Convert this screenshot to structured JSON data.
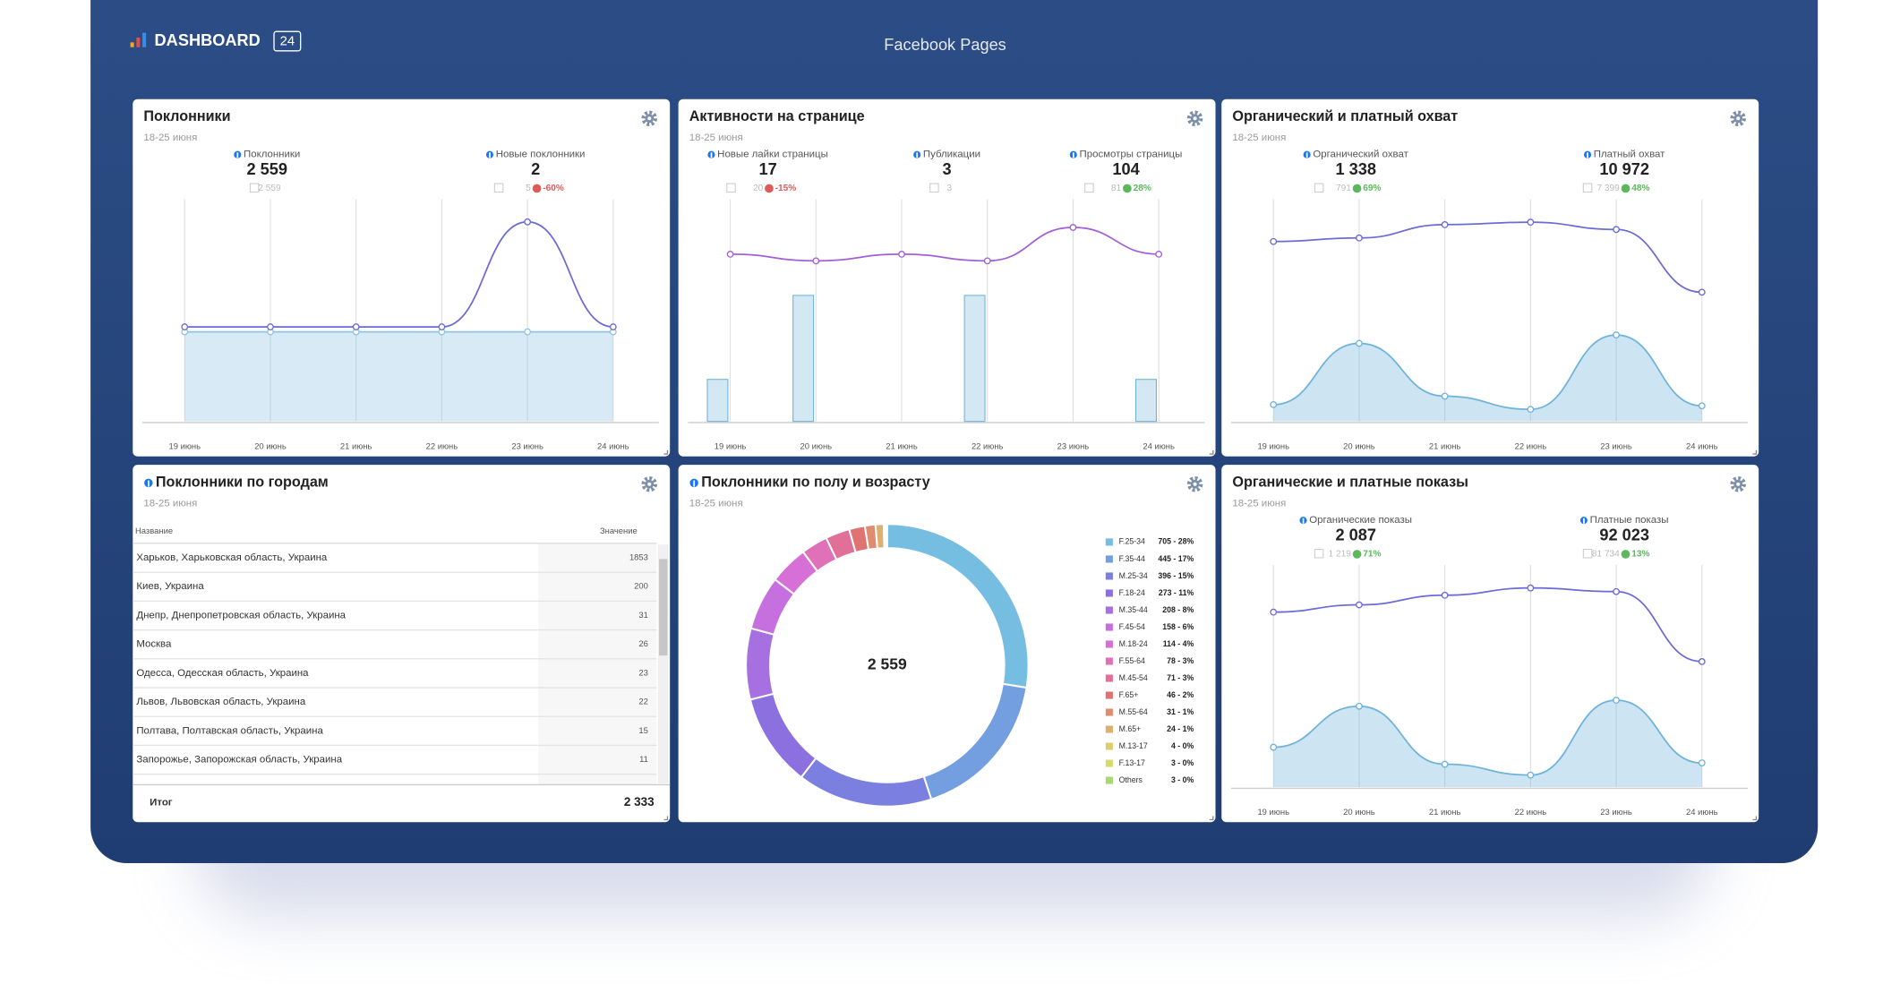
{
  "header": {
    "logo": "DASHBOARD",
    "logo_badge": "24",
    "title": "Facebook Pages"
  },
  "widgets": [
    {
      "title": "Поклонники",
      "subtitle": "18-25 июня",
      "kpis": [
        {
          "label": "Поклонники",
          "value": "2 559",
          "previous": "2 559"
        },
        {
          "label": "Новые поклонники",
          "value": "2",
          "previous": "5",
          "change": "-60%"
        }
      ],
      "chart_data": {
        "type": "combo",
        "categories": [
          "19 июнь",
          "20 июнь",
          "21 июнь",
          "22 июнь",
          "23 июнь",
          "24 июнь"
        ],
        "series": [
          {
            "type": "area",
            "color": "#8fc4e3",
            "values": [
              2559,
              2559,
              2559,
              2559,
              2559,
              2559
            ]
          },
          {
            "type": "line",
            "axis": "y2",
            "color": "#6b6bd6",
            "values": [
              0,
              0,
              0,
              0,
              2,
              0
            ]
          }
        ],
        "ylim": [
          0,
          6000
        ],
        "y2lim": [
          -1.8,
          2.2
        ]
      }
    },
    {
      "title": "Активности на странице",
      "subtitle": "18-25 июня",
      "kpis": [
        {
          "label": "Новые лайки страницы",
          "value": "17",
          "previous": "20",
          "change": "-15%"
        },
        {
          "label": "Публикации",
          "value": "3",
          "previous": "3"
        },
        {
          "label": "Просмотры страницы",
          "value": "104",
          "previous": "81",
          "change": "28%"
        }
      ],
      "chart_data": {
        "type": "combo",
        "categories": [
          "19 июнь",
          "20 июнь",
          "21 июнь",
          "22 июнь",
          "23 июнь",
          "24 июнь"
        ],
        "series": [
          {
            "type": "bar",
            "color": "#6fb3d9",
            "values": [
              2,
              6,
              0,
              6,
              0,
              2
            ]
          },
          {
            "type": "bar",
            "color": "#8f7ae0",
            "values": [
              0,
              0,
              0,
              0,
              0,
              0
            ]
          },
          {
            "type": "line",
            "axis": "y2",
            "color": "#a45fd6",
            "values": [
              17,
              16,
              17,
              16,
              21,
              17
            ]
          }
        ],
        "ylim": [
          0,
          10
        ],
        "y2lim": [
          -8,
          23.4
        ]
      }
    },
    {
      "title": "Органический и платный охват",
      "subtitle": "18-25 июня",
      "kpis": [
        {
          "label": "Органический охват",
          "value": "1 338",
          "previous": "791",
          "change": "69%"
        },
        {
          "label": "Платный охват",
          "value": "10 972",
          "previous": "7 399",
          "change": "48%"
        }
      ],
      "chart_data": {
        "type": "combo",
        "categories": [
          "19 июнь",
          "20 июнь",
          "21 июнь",
          "22 июнь",
          "23 июнь",
          "24 июнь"
        ],
        "series": [
          {
            "type": "area",
            "color": "#6fb3d9",
            "values": [
              96,
              446,
              144,
              69,
              494,
              89
            ]
          },
          {
            "type": "line",
            "axis": "y2",
            "color": "#6b6bd6",
            "values": [
              1827,
              1863,
              1998,
              2023,
              1949,
              1312
            ]
          }
        ],
        "ylim": [
          0,
          1200
        ],
        "y2lim": [
          0,
          2133
        ]
      }
    },
    {
      "title": "Поклонники по городам",
      "subtitle": "18-25 июня",
      "table": {
        "columns": [
          "Название",
          "Значение"
        ],
        "rows": [
          [
            "Харьков, Харьковская область, Украина",
            1853
          ],
          [
            "Киев, Украина",
            200
          ],
          [
            "Днепр, Днепропетровская область, Украина",
            31
          ],
          [
            "Москва",
            26
          ],
          [
            "Одесса, Одесская область, Украина",
            23
          ],
          [
            "Львов, Львовская область, Украина",
            22
          ],
          [
            "Полтава, Полтавская область, Украина",
            15
          ],
          [
            "Запорожье, Запорожская область, Украина",
            11
          ]
        ],
        "total_label": "Итог",
        "total": "2 333"
      }
    },
    {
      "title": "Поклонники по полу и возрасту",
      "subtitle": "18-25 июня",
      "chart_data": {
        "type": "donut",
        "center_label": "2 559",
        "categories": [
          "F.25-34",
          "F.35-44",
          "M.25-34",
          "F.18-24",
          "M.35-44",
          "F.45-54",
          "M.18-24",
          "F.55-64",
          "M.45-54",
          "F.65+",
          "M.55-64",
          "M.65+",
          "M.13-17",
          "F.13-17",
          "Others"
        ],
        "values": [
          705,
          445,
          396,
          273,
          208,
          158,
          114,
          78,
          71,
          46,
          31,
          24,
          4,
          3,
          3
        ],
        "value_labels": [
          "705 - 28%",
          "445 - 17%",
          "396 - 15%",
          "273 - 11%",
          "208 - 8%",
          "158 - 6%",
          "114 - 4%",
          "78 - 3%",
          "71 - 3%",
          "46 - 2%",
          "31 - 1%",
          "24 - 1%",
          "4 - 0%",
          "3 - 0%",
          "3 - 0%"
        ],
        "colors": [
          "#76bde2",
          "#739fe0",
          "#7b80e0",
          "#8c70e0",
          "#a770e0",
          "#c670e0",
          "#d670d6",
          "#e070b8",
          "#e07098",
          "#e07272",
          "#e08c70",
          "#e0ae70",
          "#e0cc70",
          "#d4dc70",
          "#a8d870"
        ]
      }
    },
    {
      "title": "Органические и платные показы",
      "subtitle": "18-25 июня",
      "kpis": [
        {
          "label": "Органические показы",
          "value": "2 087",
          "previous": "1 219",
          "change": "71%"
        },
        {
          "label": "Платные показы",
          "value": "92 023",
          "previous": "81 734",
          "change": "13%"
        }
      ],
      "chart_data": {
        "type": "combo",
        "categories": [
          "19 июнь",
          "20 июнь",
          "21 июнь",
          "22 июнь",
          "23 июнь",
          "24 июнь"
        ],
        "series": [
          {
            "type": "area",
            "color": "#6fb3d9",
            "values": [
              312,
              633,
              179,
              94,
              680,
              189
            ]
          },
          {
            "type": "line",
            "axis": "y2",
            "color": "#6b6bd6",
            "values": [
              15060,
              15683,
              16514,
              17137,
              16825,
              10804
            ]
          }
        ],
        "ylim": [
          0,
          1643
        ],
        "y2lim": [
          0,
          18072
        ]
      }
    }
  ]
}
